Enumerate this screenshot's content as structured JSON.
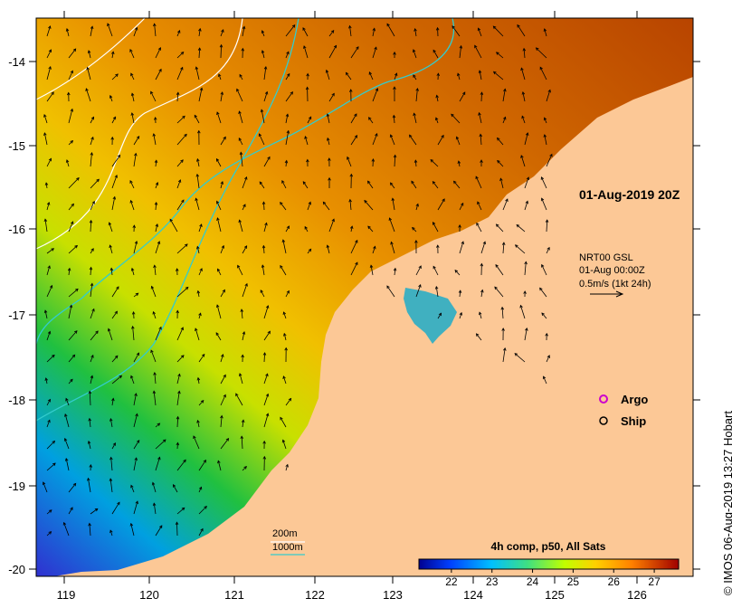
{
  "map": {
    "timestamp_label": "01-Aug-2019 20Z",
    "current_info": {
      "line1": "NRT00 GSL",
      "line2": "01-Aug 00:00Z",
      "line3": "0.5m/s (1kt 24h)"
    },
    "legend": {
      "argo_label": "Argo",
      "ship_label": "Ship",
      "argo_color": "#cc00cc",
      "isobath_200": "200m",
      "isobath_1000": "1000m",
      "isobath_200_color": "#ffffff",
      "isobath_1000_color": "#33cccc"
    },
    "colorbar": {
      "title": "4h comp, p50, All Sats",
      "ticks": [
        "22",
        "23",
        "24",
        "25",
        "26",
        "27"
      ],
      "range": [
        21.2,
        27.6
      ]
    },
    "x_axis_ticks": [
      "119",
      "120",
      "121",
      "122",
      "123",
      "124",
      "125",
      "126"
    ],
    "y_axis_ticks": [
      "-14",
      "-15",
      "-16",
      "-17",
      "-18",
      "-19",
      "-20"
    ],
    "land_color": "#fcc896",
    "credit": "© IMOS 06-Aug-2019 13:27 Hobart"
  }
}
